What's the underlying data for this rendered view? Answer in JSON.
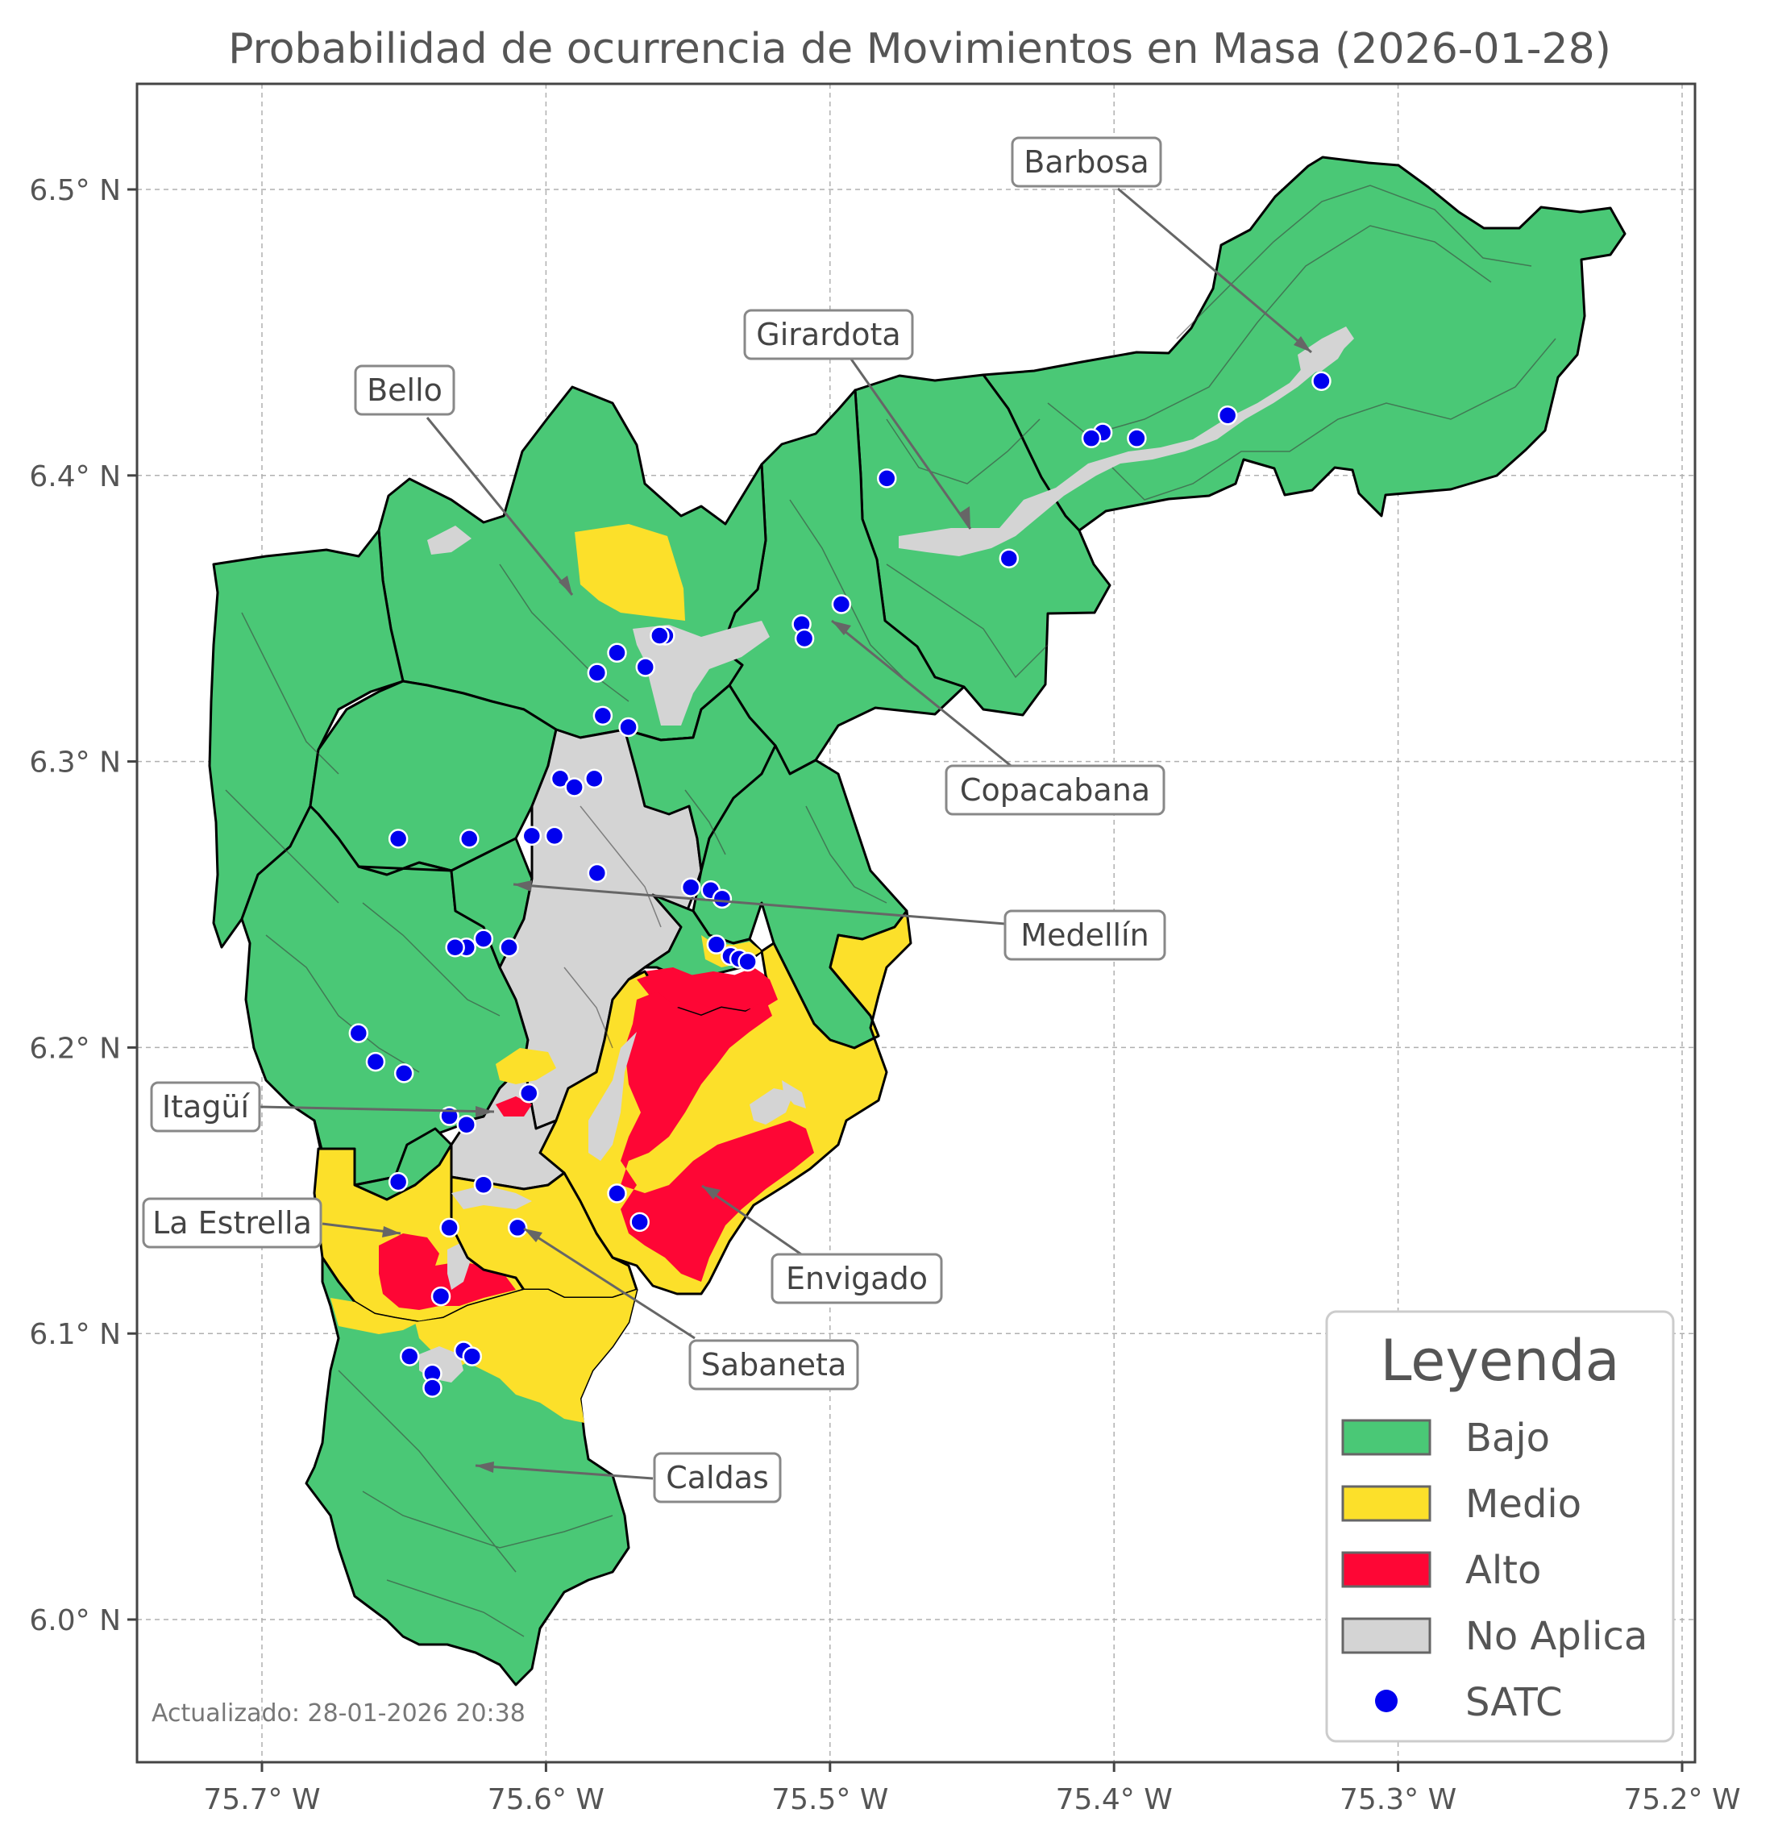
{
  "title": "Probabilidad de ocurrencia de Movimientos en Masa (2026-01-28)",
  "updated": "Actualizado: 28-01-2026 20:38",
  "colors": {
    "bajo": "#4ac876",
    "medio": "#fce02a",
    "alto": "#fe0635",
    "no_aplica": "#d4d4d4",
    "satc": "#0000ee"
  },
  "axes": {
    "x_ticks": [
      "75.7° W",
      "75.6° W",
      "75.5° W",
      "75.4° W",
      "75.3° W",
      "75.2° W"
    ],
    "y_ticks": [
      "6.5° N",
      "6.4° N",
      "6.3° N",
      "6.2° N",
      "6.1° N",
      "6.0° N"
    ],
    "x_values": [
      -75.7,
      -75.6,
      -75.5,
      -75.4,
      -75.3,
      -75.2
    ],
    "y_values": [
      6.5,
      6.4,
      6.3,
      6.2,
      6.1,
      6.0
    ],
    "grid": true
  },
  "municipalities": [
    {
      "name": "Barbosa"
    },
    {
      "name": "Girardota"
    },
    {
      "name": "Bello"
    },
    {
      "name": "Copacabana"
    },
    {
      "name": "Medellín"
    },
    {
      "name": "Itagüí"
    },
    {
      "name": "La Estrella"
    },
    {
      "name": "Envigado"
    },
    {
      "name": "Sabaneta"
    },
    {
      "name": "Caldas"
    }
  ],
  "legend": {
    "title": "Leyenda",
    "items": [
      {
        "label": "Bajo",
        "color": "#4ac876",
        "kind": "patch"
      },
      {
        "label": "Medio",
        "color": "#fce02a",
        "kind": "patch"
      },
      {
        "label": "Alto",
        "color": "#fe0635",
        "kind": "patch"
      },
      {
        "label": "No Aplica",
        "color": "#d4d4d4",
        "kind": "patch"
      },
      {
        "label": "SATC",
        "color": "#0000ee",
        "kind": "dot"
      }
    ]
  },
  "satc_stations": [
    [
      -75.327,
      6.433
    ],
    [
      -75.36,
      6.421
    ],
    [
      -75.392,
      6.413
    ],
    [
      -75.404,
      6.415
    ],
    [
      -75.408,
      6.413
    ],
    [
      -75.48,
      6.399
    ],
    [
      -75.437,
      6.371
    ],
    [
      -75.496,
      6.355
    ],
    [
      -75.51,
      6.348
    ],
    [
      -75.509,
      6.343
    ],
    [
      -75.558,
      6.344
    ],
    [
      -75.56,
      6.344
    ],
    [
      -75.565,
      6.333
    ],
    [
      -75.575,
      6.338
    ],
    [
      -75.582,
      6.331
    ],
    [
      -75.58,
      6.316
    ],
    [
      -75.571,
      6.312
    ],
    [
      -75.595,
      6.294
    ],
    [
      -75.59,
      6.291
    ],
    [
      -75.583,
      6.294
    ],
    [
      -75.652,
      6.273
    ],
    [
      -75.627,
      6.273
    ],
    [
      -75.605,
      6.274
    ],
    [
      -75.597,
      6.274
    ],
    [
      -75.582,
      6.261
    ],
    [
      -75.549,
      6.256
    ],
    [
      -75.542,
      6.255
    ],
    [
      -75.538,
      6.252
    ],
    [
      -75.54,
      6.236
    ],
    [
      -75.535,
      6.232
    ],
    [
      -75.532,
      6.231
    ],
    [
      -75.529,
      6.23
    ],
    [
      -75.613,
      6.235
    ],
    [
      -75.622,
      6.238
    ],
    [
      -75.628,
      6.235
    ],
    [
      -75.632,
      6.235
    ],
    [
      -75.666,
      6.205
    ],
    [
      -75.66,
      6.195
    ],
    [
      -75.65,
      6.191
    ],
    [
      -75.606,
      6.184
    ],
    [
      -75.634,
      6.176
    ],
    [
      -75.628,
      6.173
    ],
    [
      -75.652,
      6.153
    ],
    [
      -75.622,
      6.152
    ],
    [
      -75.634,
      6.137
    ],
    [
      -75.61,
      6.137
    ],
    [
      -75.575,
      6.149
    ],
    [
      -75.567,
      6.139
    ],
    [
      -75.637,
      6.113
    ],
    [
      -75.648,
      6.092
    ],
    [
      -75.629,
      6.094
    ],
    [
      -75.626,
      6.092
    ],
    [
      -75.64,
      6.086
    ],
    [
      -75.64,
      6.081
    ]
  ]
}
